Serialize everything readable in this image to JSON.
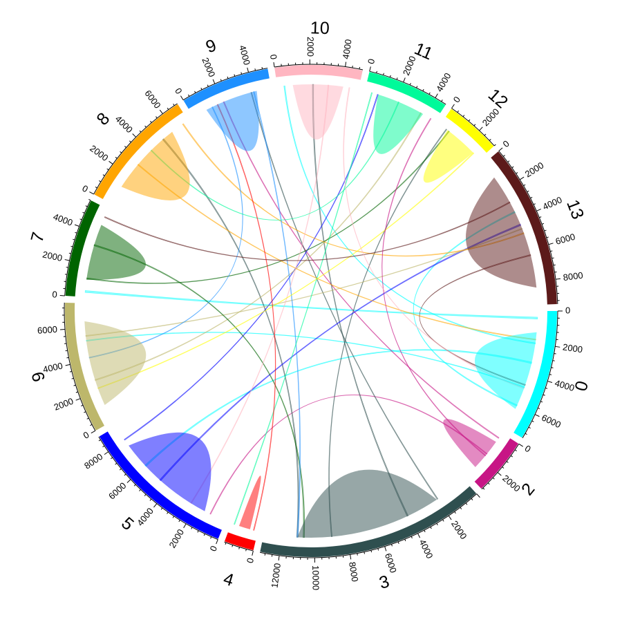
{
  "chart_data": {
    "type": "chord",
    "sectors": [
      {
        "name": "0",
        "size": 7500,
        "color": "#00FFFF",
        "self_flow": 4900,
        "tick_labels": [
          "0",
          "2000",
          "4000",
          "6000"
        ]
      },
      {
        "name": "2",
        "size": 3300,
        "color": "#C71585",
        "self_flow": 2000,
        "tick_labels": [
          "0",
          "2000"
        ]
      },
      {
        "name": "3",
        "size": 13100,
        "color": "#2F4F4F",
        "self_flow": 9000,
        "tick_labels": [
          "2000",
          "4000",
          "6000",
          "8000",
          "10000",
          "12000"
        ]
      },
      {
        "name": "4",
        "size": 1700,
        "color": "#FF0000",
        "self_flow": 700,
        "tick_labels": [
          "0"
        ]
      },
      {
        "name": "5",
        "size": 9000,
        "color": "#0000FF",
        "self_flow": 6200,
        "tick_labels": [
          "0",
          "2000",
          "4000",
          "6000",
          "8000"
        ]
      },
      {
        "name": "6",
        "size": 7500,
        "color": "#BDB76B",
        "self_flow": 5300,
        "tick_labels": [
          "0",
          "2000",
          "4000",
          "6000"
        ]
      },
      {
        "name": "7",
        "size": 5600,
        "color": "#006400",
        "self_flow": 3500,
        "tick_labels": [
          "0",
          "2000",
          "4000"
        ]
      },
      {
        "name": "8",
        "size": 7000,
        "color": "#FFA500",
        "self_flow": 4600,
        "tick_labels": [
          "0",
          "2000",
          "4000",
          "6000"
        ]
      },
      {
        "name": "9",
        "size": 5100,
        "color": "#1E90FF",
        "self_flow": 3300,
        "tick_labels": [
          "0",
          "2000",
          "4000"
        ]
      },
      {
        "name": "10",
        "size": 5000,
        "color": "#FFB6C1",
        "self_flow": 3100,
        "tick_labels": [
          "0",
          "2000",
          "4000"
        ]
      },
      {
        "name": "11",
        "size": 4700,
        "color": "#00FA9A",
        "self_flow": 3000,
        "tick_labels": [
          "0",
          "2000",
          "4000"
        ]
      },
      {
        "name": "12",
        "size": 3200,
        "color": "#FFFF00",
        "self_flow": 2100,
        "tick_labels": [
          "0",
          "2000"
        ]
      },
      {
        "name": "13",
        "size": 9400,
        "color": "#5C1A1A",
        "self_flow": 7300,
        "tick_labels": [
          "0",
          "2000",
          "4000",
          "6000",
          "8000"
        ]
      }
    ],
    "flows": [
      {
        "from": "0",
        "to": "7",
        "value": 120
      },
      {
        "from": "0",
        "to": "5",
        "value": 100
      },
      {
        "from": "0",
        "to": "13",
        "value": 80
      },
      {
        "from": "0",
        "to": "10",
        "value": 70
      },
      {
        "from": "0",
        "to": "6",
        "value": 60
      },
      {
        "from": "2",
        "to": "9",
        "value": 60
      },
      {
        "from": "2",
        "to": "5",
        "value": 50
      },
      {
        "from": "3",
        "to": "8",
        "value": 90
      },
      {
        "from": "3",
        "to": "10",
        "value": 80
      },
      {
        "from": "3",
        "to": "12",
        "value": 50
      },
      {
        "from": "3",
        "to": "9",
        "value": 60
      },
      {
        "from": "5",
        "to": "13",
        "value": 90
      },
      {
        "from": "5",
        "to": "11",
        "value": 60
      },
      {
        "from": "6",
        "to": "11",
        "value": 70
      },
      {
        "from": "6",
        "to": "13",
        "value": 50
      },
      {
        "from": "7",
        "to": "12",
        "value": 60
      },
      {
        "from": "7",
        "to": "3",
        "value": 80
      },
      {
        "from": "8",
        "to": "13",
        "value": 70
      },
      {
        "from": "8",
        "to": "0",
        "value": 60
      },
      {
        "from": "9",
        "to": "3",
        "value": 70
      },
      {
        "from": "9",
        "to": "6",
        "value": 40
      },
      {
        "from": "10",
        "to": "5",
        "value": 60
      },
      {
        "from": "11",
        "to": "4",
        "value": 40
      },
      {
        "from": "11",
        "to": "8",
        "value": 50
      },
      {
        "from": "12",
        "to": "6",
        "value": 40
      },
      {
        "from": "13",
        "to": "7",
        "value": 60
      },
      {
        "from": "13",
        "to": "0",
        "value": 70
      },
      {
        "from": "4",
        "to": "9",
        "value": 40
      },
      {
        "from": "2",
        "to": "11",
        "value": 40
      },
      {
        "from": "10",
        "to": "0",
        "value": 50
      }
    ],
    "tick_step_major": 2000,
    "tick_step_minor": 400,
    "start_angle_deg": 0,
    "direction": "clockwise-from-east"
  }
}
